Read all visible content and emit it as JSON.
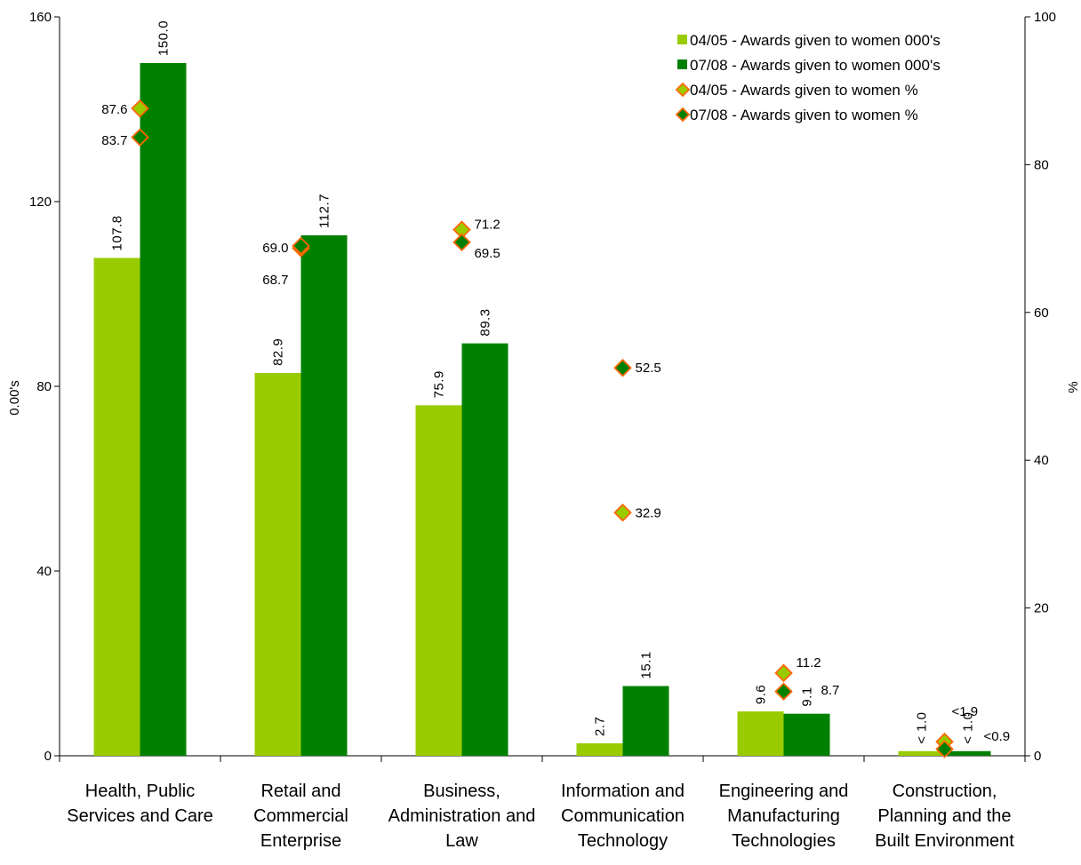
{
  "chart_data": {
    "type": "bar",
    "categories": [
      [
        "Health, Public",
        "Services and Care"
      ],
      [
        "Retail and",
        "Commercial",
        "Enterprise"
      ],
      [
        "Business,",
        "Administration and",
        "Law"
      ],
      [
        "Information and",
        "Communication",
        "Technology"
      ],
      [
        "Engineering and",
        "Manufacturing",
        "Technologies"
      ],
      [
        "Construction,",
        "Planning and the",
        "Built Environment"
      ]
    ],
    "series": [
      {
        "name": "04/05 - Awards given to women 000's",
        "kind": "bar",
        "axis": "left",
        "color": "#99cc00",
        "values": [
          107.8,
          82.9,
          75.9,
          2.7,
          9.6,
          1.0
        ],
        "labels": [
          "107.8",
          "82.9",
          "75.9",
          "2.7",
          "9.6",
          "< 1.0"
        ]
      },
      {
        "name": "07/08 - Awards given to women 000's",
        "kind": "bar",
        "axis": "left",
        "color": "#008000",
        "values": [
          150.0,
          112.7,
          89.3,
          15.1,
          9.1,
          1.0
        ],
        "labels": [
          "150.0",
          "112.7",
          "89.3",
          "15.1",
          "9.1",
          "< 1.0"
        ]
      },
      {
        "name": "04/05 - Awards given to women %",
        "kind": "marker",
        "axis": "right",
        "color": "#99cc00",
        "edge_color": "#ff6600",
        "values": [
          87.6,
          68.7,
          71.2,
          32.9,
          11.2,
          1.9
        ],
        "labels": [
          "87.6",
          "68.7",
          "71.2",
          "32.9",
          "11.2",
          "<1.9"
        ]
      },
      {
        "name": "07/08 - Awards given to women %",
        "kind": "marker",
        "axis": "right",
        "color": "#008000",
        "edge_color": "#ff6600",
        "values": [
          83.7,
          69.0,
          69.5,
          52.5,
          8.7,
          0.9
        ],
        "labels": [
          "83.7",
          "69.0",
          "69.5",
          "52.5",
          "8.7",
          "<0.9"
        ]
      }
    ],
    "ylabel": "0.00's",
    "y2label": "%",
    "ylim": [
      0,
      160
    ],
    "yticks": [
      "0",
      "40",
      "80",
      "120",
      "160"
    ],
    "y2lim": [
      0,
      100
    ],
    "y2ticks": [
      "0",
      "20",
      "40",
      "60",
      "80",
      "100"
    ],
    "legend_position": "top-right",
    "grid": false
  }
}
